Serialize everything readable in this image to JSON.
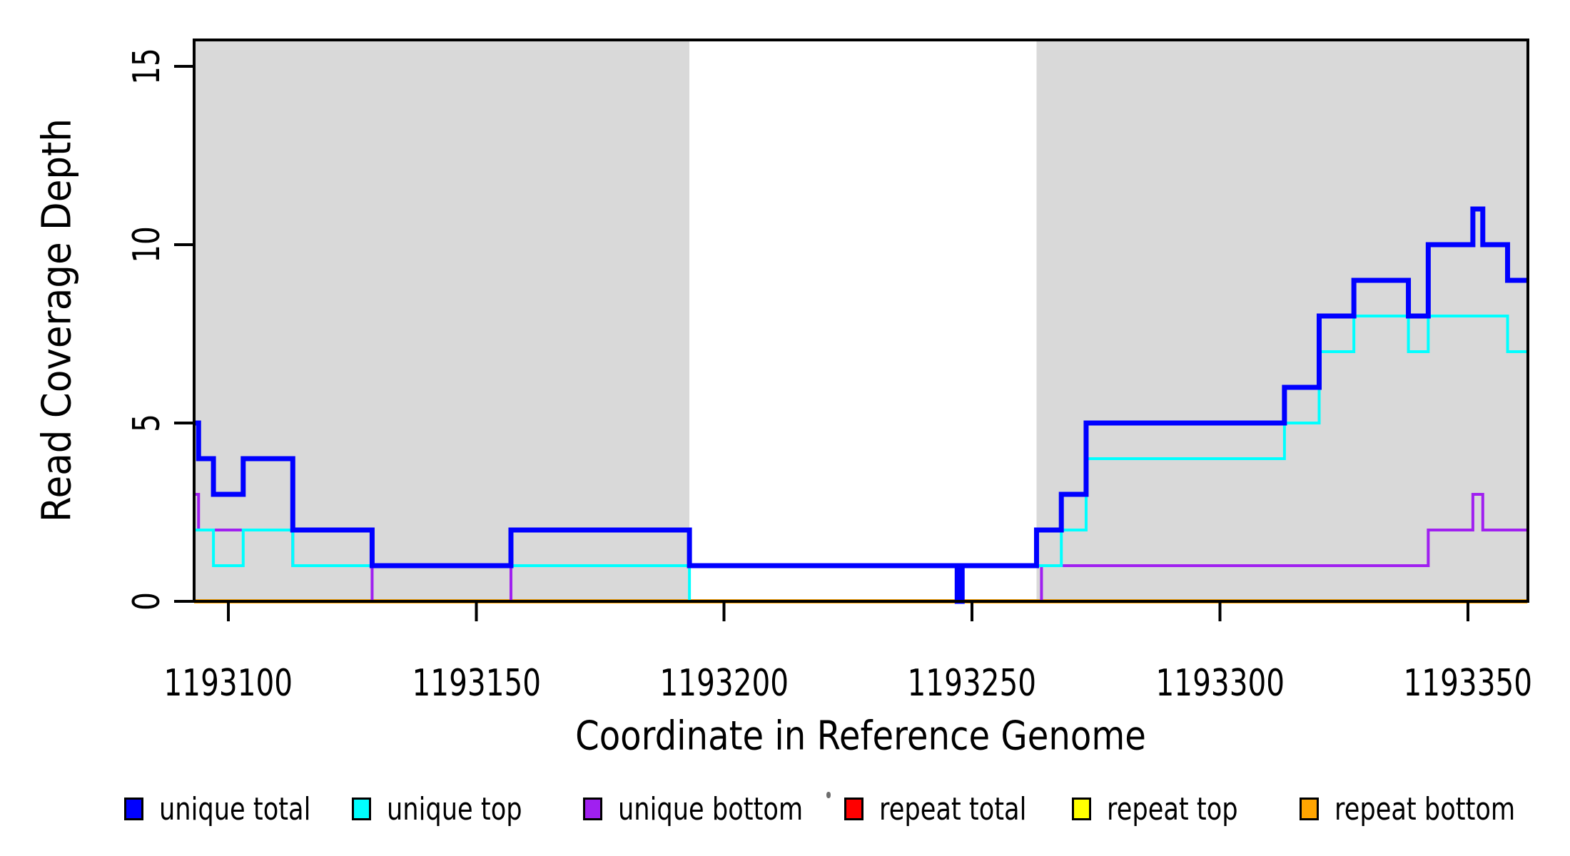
{
  "chart_data": {
    "type": "line",
    "subtype": "step",
    "title": "",
    "xlabel": "Coordinate in Reference Genome",
    "ylabel": "Read Coverage Depth",
    "xlim": [
      1193093,
      1193362
    ],
    "ylim": [
      0,
      15.7
    ],
    "x_ticks": [
      "1193100",
      "1193150",
      "1193200",
      "1193250",
      "1193300",
      "1193350"
    ],
    "y_ticks": [
      "0",
      "5",
      "10",
      "15"
    ],
    "grid": false,
    "axis_color": "#000000",
    "background_shading": {
      "color": "#d9d9d9",
      "regions": [
        [
          1193093,
          1193193
        ],
        [
          1193263,
          1193362
        ]
      ]
    },
    "series": [
      {
        "name": "repeat total",
        "color": "#ff0000",
        "line_width": 4,
        "steps": [
          [
            1193093,
            0
          ],
          [
            1193362,
            0
          ]
        ]
      },
      {
        "name": "repeat top",
        "color": "#ffff00",
        "line_width": 5,
        "steps": [
          [
            1193093,
            0
          ],
          [
            1193362,
            0
          ]
        ]
      },
      {
        "name": "repeat bottom",
        "color": "#ffa500",
        "line_width": 6,
        "steps": [
          [
            1193093,
            0
          ],
          [
            1193362,
            0
          ]
        ]
      },
      {
        "name": "unique bottom",
        "color": "#a020f0",
        "line_width": 4,
        "steps": [
          [
            1193093,
            3
          ],
          [
            1193094,
            2
          ],
          [
            1193113,
            1
          ],
          [
            1193129,
            0
          ],
          [
            1193157,
            1
          ],
          [
            1193247,
            0
          ],
          [
            1193264,
            1
          ],
          [
            1193342,
            2
          ],
          [
            1193351,
            3
          ],
          [
            1193353,
            2
          ],
          [
            1193362,
            2
          ]
        ]
      },
      {
        "name": "unique top",
        "color": "#00ffff",
        "line_width": 4,
        "steps": [
          [
            1193093,
            2
          ],
          [
            1193097,
            1
          ],
          [
            1193103,
            2
          ],
          [
            1193113,
            1
          ],
          [
            1193193,
            0
          ],
          [
            1193248,
            1
          ],
          [
            1193268,
            2
          ],
          [
            1193273,
            4
          ],
          [
            1193313,
            5
          ],
          [
            1193320,
            7
          ],
          [
            1193327,
            8
          ],
          [
            1193338,
            7
          ],
          [
            1193342,
            8
          ],
          [
            1193358,
            7
          ],
          [
            1193362,
            7
          ]
        ]
      },
      {
        "name": "unique total",
        "color": "#0000ff",
        "line_width": 7,
        "steps": [
          [
            1193093,
            5
          ],
          [
            1193094,
            4
          ],
          [
            1193097,
            3
          ],
          [
            1193103,
            4
          ],
          [
            1193113,
            2
          ],
          [
            1193129,
            1
          ],
          [
            1193157,
            2
          ],
          [
            1193193,
            1
          ],
          [
            1193247,
            0
          ],
          [
            1193248,
            1
          ],
          [
            1193263,
            2
          ],
          [
            1193268,
            3
          ],
          [
            1193273,
            5
          ],
          [
            1193313,
            6
          ],
          [
            1193320,
            8
          ],
          [
            1193327,
            9
          ],
          [
            1193338,
            8
          ],
          [
            1193342,
            10
          ],
          [
            1193351,
            11
          ],
          [
            1193353,
            10
          ],
          [
            1193358,
            9
          ],
          [
            1193362,
            9
          ]
        ]
      }
    ],
    "legend": {
      "position": "bottom",
      "items": [
        {
          "label": "unique total",
          "color": "#0000ff"
        },
        {
          "label": "unique top",
          "color": "#00ffff"
        },
        {
          "label": "unique bottom",
          "color": "#a020f0"
        },
        {
          "label": "repeat total",
          "color": "#ff0000"
        },
        {
          "label": "repeat top",
          "color": "#ffff00"
        },
        {
          "label": "repeat bottom",
          "color": "#ffa500"
        }
      ]
    }
  }
}
